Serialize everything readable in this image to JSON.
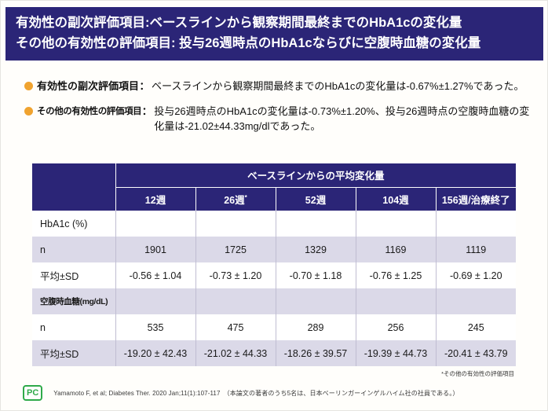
{
  "title": {
    "line1": "有効性の副次評価項目:ベースラインから観察期間最終までのHbA1cの変化量",
    "line2": "その他の有効性の評価項目: 投与26週時点のHbA1cならびに空腹時血糖の変化量"
  },
  "bullets": [
    {
      "label": "有効性の副次評価項目",
      "separator": "：",
      "text": "ベースラインから観察期間最終までのHbA1cの変化量は-0.67%±1.27%であった。"
    },
    {
      "label": "その他の有効性の評価項目",
      "separator": "：",
      "text": "投与26週時点のHbA1cの変化量は-0.73%±1.20%、投与26週時点の空腹時血糖の変化量は-21.02±44.33mg/dlであった。"
    }
  ],
  "table": {
    "group_header": "ベースラインからの平均変化量",
    "column_headers": [
      "12週",
      "26週",
      "52週",
      "104週",
      "156週/治療終了"
    ],
    "column_header_note_index": 1,
    "column_header_note_mark": "*",
    "rows": [
      {
        "label": "HbA1c (%)",
        "values": [
          "",
          "",
          "",
          "",
          ""
        ]
      },
      {
        "label": "n",
        "values": [
          "1901",
          "1725",
          "1329",
          "1169",
          "1119"
        ]
      },
      {
        "label": "平均±SD",
        "values": [
          "-0.56 ± 1.04",
          "-0.73 ± 1.20",
          "-0.70 ± 1.18",
          "-0.76 ± 1.25",
          "-0.69 ± 1.20"
        ]
      },
      {
        "label": "空腹時血糖(mg/dL)",
        "values": [
          "",
          "",
          "",
          "",
          ""
        ]
      },
      {
        "label": "n",
        "values": [
          "535",
          "475",
          "289",
          "256",
          "245"
        ]
      },
      {
        "label": "平均±SD",
        "values": [
          "-19.20 ± 42.43",
          "-21.02 ± 44.33",
          "-18.26 ± 39.57",
          "-19.39 ± 44.73",
          "-20.41 ± 43.79"
        ]
      }
    ],
    "footnote": "*その他の有効性の評価項目"
  },
  "footer": {
    "badge": "PC",
    "citation": "Yamamoto F, et al; Diabetes Ther. 2020 Jan;11(1):107-117　（本論文の著者のうち5名は、日本ベーリンガーインゲルハイム社の社員である。）"
  },
  "colors": {
    "title_band_bg": "#2b2577",
    "table_header_bg": "#2b2577",
    "shaded_row_bg": "#dbd9e8",
    "bullet_dot": "#f0a32f",
    "badge_green": "#2faa4a"
  }
}
